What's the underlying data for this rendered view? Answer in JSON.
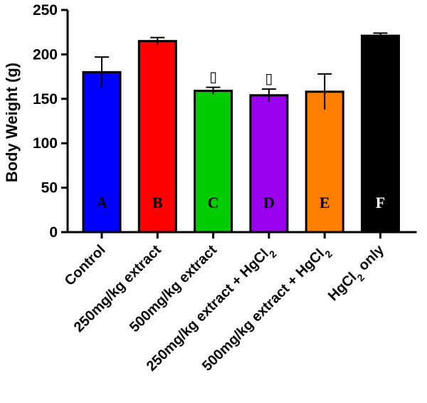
{
  "chart_data": {
    "type": "bar",
    "title": "",
    "xlabel": "",
    "ylabel": "Body Weight (g)",
    "ylim": [
      0,
      250
    ],
    "yticks": [
      0,
      50,
      100,
      150,
      200,
      250
    ],
    "grid": false,
    "categories": [
      "Control",
      "250mg/kg extract",
      "500mg/kg extract",
      "250mg/kg extract + HgCl2",
      "500mg/kg extract + HgCl2",
      "HgCl2 only"
    ],
    "category_labels": [
      {
        "parts": [
          {
            "t": "Control"
          }
        ]
      },
      {
        "parts": [
          {
            "t": "250mg/kg extract"
          }
        ]
      },
      {
        "parts": [
          {
            "t": "500mg/kg extract"
          }
        ]
      },
      {
        "parts": [
          {
            "t": "250mg/kg extract + HgCl"
          },
          {
            "t": "2",
            "sub": true
          }
        ]
      },
      {
        "parts": [
          {
            "t": "500mg/kg extract + HgCl"
          },
          {
            "t": "2",
            "sub": true
          }
        ]
      },
      {
        "parts": [
          {
            "t": "HgCl"
          },
          {
            "t": "2",
            "sub": true
          },
          {
            "t": " only"
          }
        ]
      }
    ],
    "values": [
      180,
      215,
      159,
      154,
      158,
      221
    ],
    "errors": [
      17,
      4,
      4,
      7,
      20,
      3
    ],
    "colors": [
      "#0000ff",
      "#ff0000",
      "#00cc00",
      "#9900ee",
      "#ff8000",
      "#000000"
    ],
    "bar_letters": [
      "A",
      "B",
      "C",
      "D",
      "E",
      "F"
    ],
    "bar_letter_colors": [
      "#000000",
      "#000000",
      "#000000",
      "#000000",
      "#000000",
      "#ffffff"
    ],
    "significance_marks": [
      "",
      "",
      "▯",
      "▯",
      "",
      ""
    ]
  }
}
